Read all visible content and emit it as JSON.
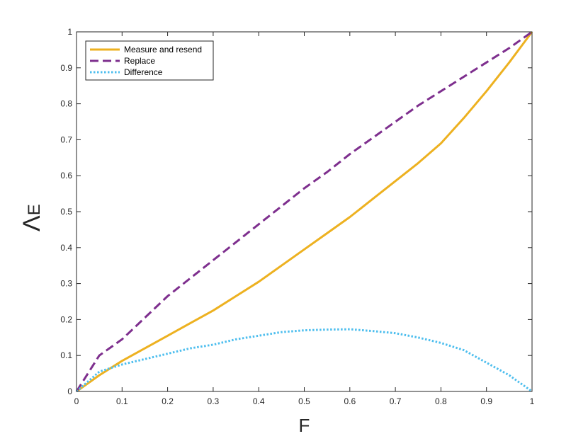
{
  "chart_data": {
    "type": "line",
    "title": "",
    "xlabel": "F",
    "ylabel": "Λ",
    "ylabel_subscript": "E",
    "xlim": [
      0,
      1
    ],
    "ylim": [
      0,
      1
    ],
    "xticks": [
      "0",
      "0.1",
      "0.2",
      "0.3",
      "0.4",
      "0.5",
      "0.6",
      "0.7",
      "0.8",
      "0.9",
      "1"
    ],
    "yticks": [
      "0",
      "0.1",
      "0.2",
      "0.3",
      "0.4",
      "0.5",
      "0.6",
      "0.7",
      "0.8",
      "0.9",
      "1"
    ],
    "grid": false,
    "legend_position": "top-left",
    "x": [
      0,
      0.05,
      0.1,
      0.15,
      0.2,
      0.25,
      0.3,
      0.35,
      0.4,
      0.45,
      0.5,
      0.55,
      0.6,
      0.65,
      0.7,
      0.75,
      0.8,
      0.85,
      0.9,
      0.95,
      1.0
    ],
    "series": [
      {
        "name": "Measure and resend",
        "color": "#EDB120",
        "style": "solid",
        "values": [
          0,
          0.045,
          0.085,
          0.12,
          0.155,
          0.19,
          0.225,
          0.265,
          0.305,
          0.35,
          0.395,
          0.44,
          0.485,
          0.535,
          0.585,
          0.635,
          0.69,
          0.76,
          0.835,
          0.915,
          1.0
        ]
      },
      {
        "name": "Replace",
        "color": "#7E2F8E",
        "style": "dashed",
        "values": [
          0,
          0.1,
          0.145,
          0.205,
          0.265,
          0.315,
          0.365,
          0.415,
          0.465,
          0.515,
          0.565,
          0.61,
          0.66,
          0.705,
          0.75,
          0.795,
          0.835,
          0.875,
          0.915,
          0.955,
          1.0
        ]
      },
      {
        "name": "Difference",
        "color": "#4DBEEE",
        "style": "dotted",
        "values": [
          0,
          0.055,
          0.075,
          0.09,
          0.105,
          0.12,
          0.13,
          0.145,
          0.155,
          0.165,
          0.17,
          0.172,
          0.173,
          0.168,
          0.162,
          0.15,
          0.135,
          0.115,
          0.08,
          0.045,
          0
        ]
      }
    ]
  }
}
